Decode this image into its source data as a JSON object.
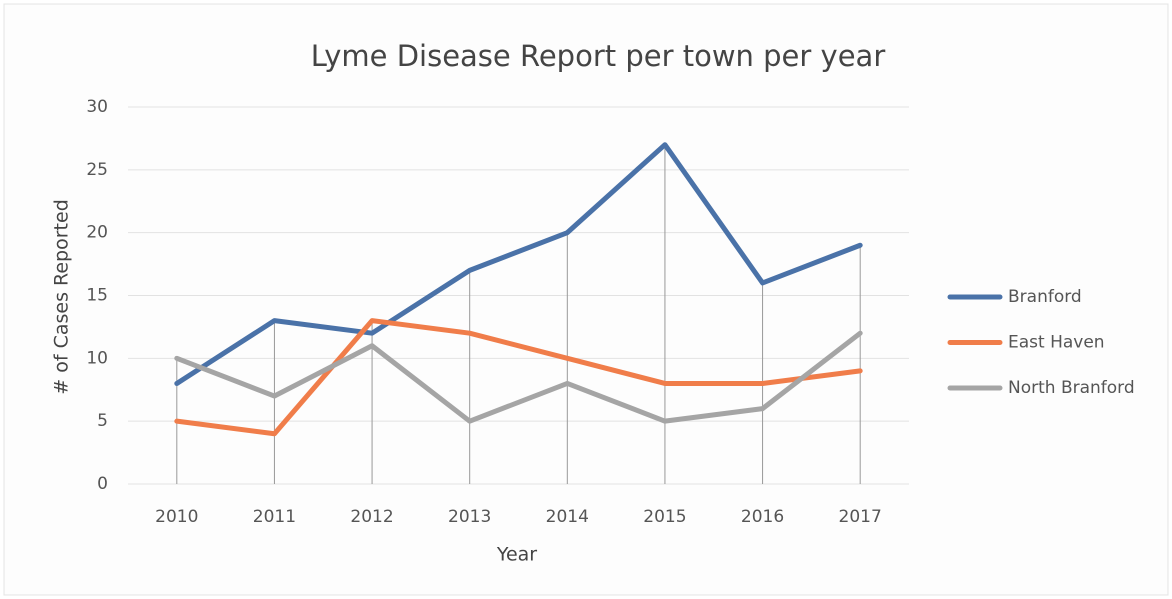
{
  "chart_data": {
    "type": "line",
    "title": "Lyme Disease Report per town per year",
    "xlabel": "Year",
    "ylabel": "# of Cases Reported",
    "categories": [
      "2010",
      "2011",
      "2012",
      "2013",
      "2014",
      "2015",
      "2016",
      "2017"
    ],
    "series": [
      {
        "name": "Branford",
        "color": "#4a72a8",
        "values": [
          8,
          13,
          12,
          17,
          20,
          27,
          16,
          19
        ]
      },
      {
        "name": "East Haven",
        "color": "#f07d4a",
        "values": [
          5,
          4,
          13,
          12,
          10,
          8,
          8,
          9
        ]
      },
      {
        "name": "North Branford",
        "color": "#a5a5a5",
        "values": [
          10,
          7,
          11,
          5,
          8,
          5,
          6,
          12
        ]
      }
    ],
    "ylim": [
      0,
      30
    ],
    "yticks": [
      0,
      5,
      10,
      15,
      20,
      25,
      30
    ],
    "grid": true,
    "legend": "right"
  }
}
